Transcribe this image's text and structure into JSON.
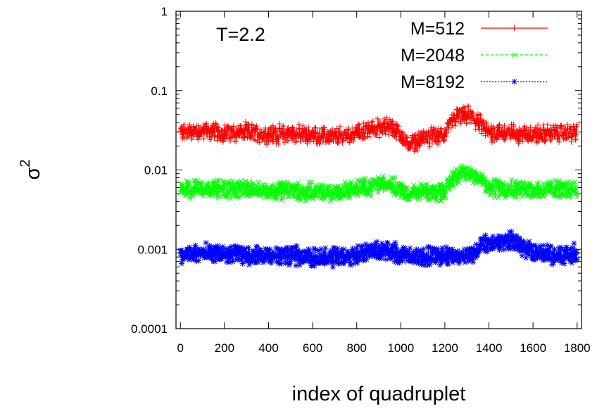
{
  "chart_data": {
    "type": "scatter",
    "xlabel": "index of quadruplet",
    "ylabel": "σ",
    "ylabel_superscript": "2",
    "annotation": "T=2.2",
    "xlim": [
      -20,
      1820
    ],
    "ylim": [
      0.0001,
      1
    ],
    "y_scale": "log",
    "x_ticks": [
      0,
      200,
      400,
      600,
      800,
      1000,
      1200,
      1400,
      1600,
      1800
    ],
    "x_tick_labels": [
      "0",
      "200",
      "400",
      "600",
      "800",
      "1000",
      "1200",
      "1400",
      "1600",
      "1800"
    ],
    "y_ticks": [
      0.0001,
      0.001,
      0.01,
      0.1,
      1
    ],
    "y_tick_labels": [
      "0.0001",
      "0.001",
      "0.01",
      "0.1",
      "1"
    ],
    "grid": false,
    "legend_position": "top-right",
    "series": [
      {
        "name": "M=512",
        "color": "#ff0000",
        "marker": "plus",
        "x": [
          0,
          100,
          200,
          300,
          400,
          500,
          600,
          700,
          800,
          900,
          950,
          1000,
          1030,
          1100,
          1200,
          1240,
          1300,
          1340,
          1400,
          1500,
          1600,
          1700,
          1800
        ],
        "values": [
          0.03,
          0.031,
          0.029,
          0.03,
          0.028,
          0.029,
          0.027,
          0.026,
          0.029,
          0.034,
          0.036,
          0.027,
          0.021,
          0.025,
          0.028,
          0.045,
          0.05,
          0.042,
          0.03,
          0.029,
          0.028,
          0.029,
          0.03
        ]
      },
      {
        "name": "M=2048",
        "color": "#00ff00",
        "marker": "cross",
        "x": [
          0,
          100,
          200,
          300,
          400,
          500,
          600,
          700,
          800,
          900,
          950,
          1000,
          1030,
          1100,
          1200,
          1240,
          1300,
          1340,
          1400,
          1500,
          1600,
          1700,
          1800
        ],
        "values": [
          0.0056,
          0.006,
          0.0057,
          0.0059,
          0.0055,
          0.0055,
          0.0052,
          0.0053,
          0.0058,
          0.0065,
          0.0068,
          0.0057,
          0.005,
          0.0052,
          0.0054,
          0.0085,
          0.009,
          0.0086,
          0.006,
          0.0058,
          0.0056,
          0.0057,
          0.0058
        ]
      },
      {
        "name": "M=8192",
        "color": "#0000ff",
        "marker": "star",
        "x": [
          0,
          100,
          200,
          300,
          400,
          500,
          600,
          700,
          800,
          900,
          950,
          1000,
          1030,
          1100,
          1200,
          1300,
          1340,
          1370,
          1400,
          1500,
          1600,
          1700,
          1800
        ],
        "values": [
          0.00082,
          0.0009,
          0.00085,
          0.00086,
          0.00083,
          0.00083,
          0.0008,
          0.0008,
          0.00086,
          0.00095,
          0.00098,
          0.00086,
          0.0008,
          0.0008,
          0.00083,
          0.00082,
          0.0009,
          0.00125,
          0.0012,
          0.00135,
          0.0009,
          0.00085,
          0.00088
        ]
      }
    ]
  }
}
